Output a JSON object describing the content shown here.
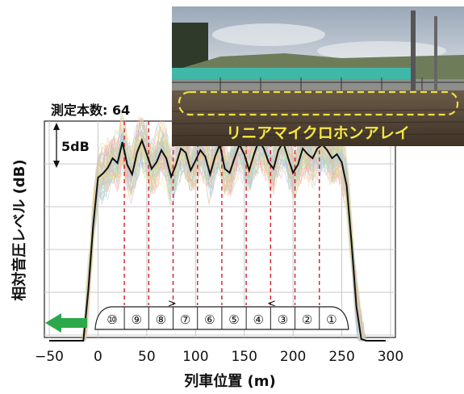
{
  "chart_data": {
    "type": "line",
    "count_label": "測定本数: 64",
    "ylabel": "相対音圧レベル (dB)",
    "xlabel": "列車位置 (m)",
    "xlim": [
      -55,
      305
    ],
    "x_ticks": [
      -50,
      0,
      50,
      100,
      150,
      200,
      250,
      300
    ],
    "x_tick_labels": [
      "−50",
      "0",
      "50",
      "100",
      "150",
      "200",
      "250",
      "300"
    ],
    "scale_bar_label": "5dB",
    "scale_bar_db": 5,
    "grid": true,
    "car_boundaries": [
      27,
      52,
      77,
      102,
      127,
      152,
      177,
      202,
      227
    ],
    "car_numbers": [
      "⑩",
      "⑨",
      "⑧",
      "⑦",
      "⑥",
      "⑤",
      "④",
      "③",
      "②",
      "①"
    ],
    "direction": "left",
    "series": [
      {
        "name": "average",
        "color": "#111111",
        "x": [
          -50,
          -40,
          -30,
          -20,
          -15,
          -10,
          -5,
          0,
          5,
          10,
          15,
          20,
          25,
          30,
          35,
          40,
          45,
          50,
          55,
          60,
          65,
          70,
          75,
          80,
          85,
          90,
          95,
          100,
          105,
          110,
          115,
          120,
          125,
          130,
          135,
          140,
          145,
          150,
          155,
          160,
          165,
          170,
          175,
          180,
          185,
          190,
          195,
          200,
          205,
          210,
          215,
          220,
          225,
          230,
          235,
          240,
          245,
          250,
          255,
          260,
          265,
          270,
          275,
          280,
          285,
          290,
          295
        ],
        "y": [
          -38,
          -36,
          -36,
          -34,
          -27,
          -19,
          -11,
          -5,
          -4.5,
          -3.8,
          -2.6,
          -3.2,
          -0.6,
          -3.4,
          -4.6,
          -1.9,
          -0.4,
          -2.1,
          -3.9,
          -3.1,
          -1.6,
          -2.6,
          -4.9,
          -3.4,
          -1.4,
          -1.9,
          -4.1,
          -2.9,
          -1.6,
          -2.4,
          -4.6,
          -2.4,
          -0.9,
          -3.9,
          -4.4,
          -2.6,
          -0.9,
          -2.1,
          -4.1,
          -2.1,
          -0.4,
          -1.4,
          -3.1,
          -3.9,
          -1.6,
          -0.6,
          -2.6,
          -4.4,
          -3.4,
          -1.4,
          -2.1,
          -2.6,
          -1.4,
          -0.9,
          -1.6,
          -2.6,
          -2.1,
          -3.1,
          -6,
          -13,
          -21,
          -25,
          -28,
          -33,
          -36,
          -39,
          -40
        ]
      }
    ],
    "individual_traces": 64,
    "individual_trace_colors": [
      "#f4a6b4",
      "#a8d8a0",
      "#f3d28c",
      "#9ec9e8",
      "#c9b3e6",
      "#f7c08a",
      "#b5e3d6",
      "#e8e89a"
    ]
  },
  "photo": {
    "label": "リニアマイクロホンアレイ"
  }
}
